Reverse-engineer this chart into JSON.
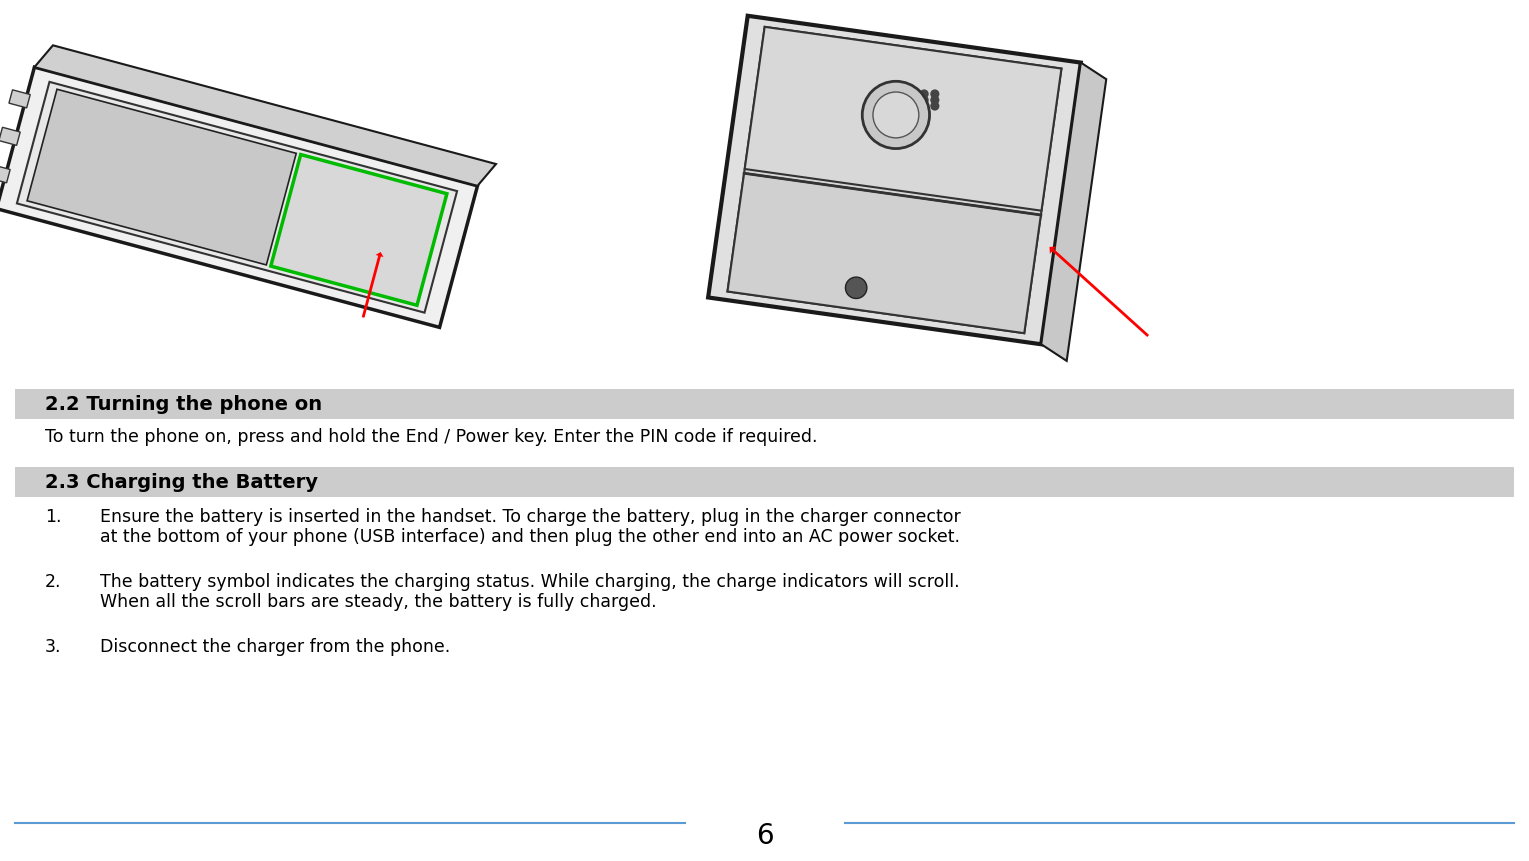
{
  "bg_color": "#ffffff",
  "header_bg_color": "#cccccc",
  "header_text_color": "#000000",
  "body_text_color": "#000000",
  "line_color": "#5b9bd5",
  "page_number": "6",
  "section1_title": "2.2 Turning the phone on",
  "section1_body": "To turn the phone on, press and hold the End / Power key. Enter the PIN code if required.",
  "section2_title": "2.3 Charging the Battery",
  "item1_num": "1.",
  "item1_text": "Ensure the battery is inserted in the handset. To charge the battery, plug in the charger connector\nat the bottom of your phone (USB interface) and then plug the other end into an AC power socket.",
  "item2_num": "2.",
  "item2_text": "The battery symbol indicates the charging status. While charging, the charge indicators will scroll.\nWhen all the scroll bars are steady, the battery is fully charged.",
  "item3_num": "3.",
  "item3_text": "Disconnect the charger from the phone.",
  "header_fontsize": 14,
  "body_fontsize": 12.5,
  "page_num_fontsize": 20,
  "fig_width": 15.29,
  "fig_height": 8.62,
  "dpi": 100
}
